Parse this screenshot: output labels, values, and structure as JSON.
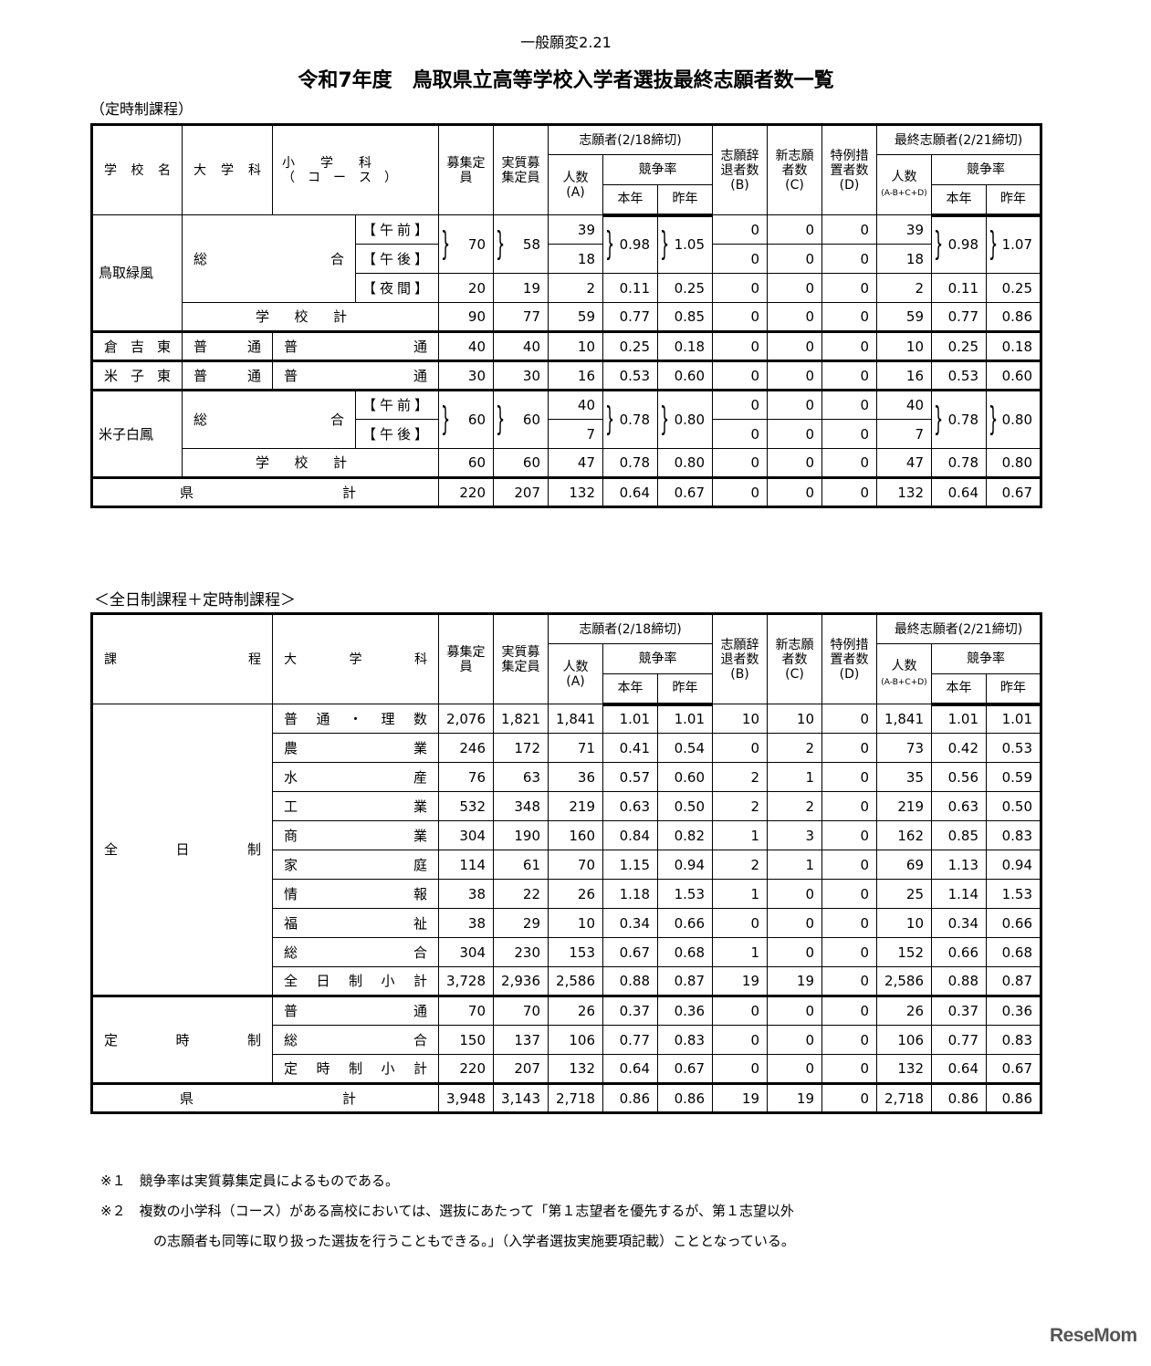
{
  "subtitle": "一般願変2.21",
  "title": "令和7年度　鳥取県立高等学校入学者選抜最終志願者数一覧",
  "section1": "（定時制課程）",
  "section2": "＜全日制課程＋定時制課程＞",
  "headers": {
    "school": "学校名",
    "course_type": "課程",
    "dept": "大学科",
    "subdept": "小　　学　　科",
    "subdept_course": "（　コ　ー　ス　）",
    "quota": "募集定員",
    "actual_quota": "実質募集定員",
    "applicants": "志願者(2/18締切)",
    "count": "人数",
    "count_a": "(A)",
    "rate": "競争率",
    "this_year": "本年",
    "last_year": "昨年",
    "withdraw": "志願辞退者数",
    "withdraw_b": "(B)",
    "new": "新志願者数",
    "new_c": "(C)",
    "special": "特例措置者数",
    "special_d": "(D)",
    "final": "最終志願者(2/21締切)",
    "final_formula": "(A-B+C+D)"
  },
  "table1": {
    "rows": [
      {
        "school": "鳥取緑風",
        "dept": "総　　　　合",
        "course": "【午前】",
        "quota": "70",
        "actual": "58",
        "a": "39",
        "rate": "0.98",
        "last": "1.05",
        "b": "0",
        "c": "0",
        "d": "0",
        "final": "39",
        "frate": "0.98",
        "flast": "1.07"
      },
      {
        "course": "【午後】",
        "a": "18",
        "b": "0",
        "c": "0",
        "d": "0",
        "final": "18"
      },
      {
        "course": "【夜間】",
        "quota": "20",
        "actual": "19",
        "a": "2",
        "rate": "0.11",
        "last": "0.25",
        "b": "0",
        "c": "0",
        "d": "0",
        "final": "2",
        "frate": "0.11",
        "flast": "0.25"
      },
      {
        "dept": "学校計",
        "quota": "90",
        "actual": "77",
        "a": "59",
        "rate": "0.77",
        "last": "0.85",
        "b": "0",
        "c": "0",
        "d": "0",
        "final": "59",
        "frate": "0.77",
        "flast": "0.86"
      },
      {
        "school": "倉吉東",
        "dept": "普通",
        "sub": "普通",
        "quota": "40",
        "actual": "40",
        "a": "10",
        "rate": "0.25",
        "last": "0.18",
        "b": "0",
        "c": "0",
        "d": "0",
        "final": "10",
        "frate": "0.25",
        "flast": "0.18"
      },
      {
        "school": "米子東",
        "dept": "普通",
        "sub": "普通",
        "quota": "30",
        "actual": "30",
        "a": "16",
        "rate": "0.53",
        "last": "0.60",
        "b": "0",
        "c": "0",
        "d": "0",
        "final": "16",
        "frate": "0.53",
        "flast": "0.60"
      },
      {
        "school": "米子白鳳",
        "dept": "総　　　　合",
        "course": "【午前】",
        "quota": "60",
        "actual": "60",
        "a": "40",
        "rate": "0.78",
        "last": "0.80",
        "b": "0",
        "c": "0",
        "d": "0",
        "final": "40",
        "frate": "0.78",
        "flast": "0.80"
      },
      {
        "course": "【午後】",
        "a": "7",
        "b": "0",
        "c": "0",
        "d": "0",
        "final": "7"
      },
      {
        "dept": "学校計",
        "quota": "60",
        "actual": "60",
        "a": "47",
        "rate": "0.78",
        "last": "0.80",
        "b": "0",
        "c": "0",
        "d": "0",
        "final": "47",
        "frate": "0.78",
        "flast": "0.80"
      },
      {
        "dept": "県計",
        "quota": "220",
        "actual": "207",
        "a": "132",
        "rate": "0.64",
        "last": "0.67",
        "b": "0",
        "c": "0",
        "d": "0",
        "final": "132",
        "frate": "0.64",
        "flast": "0.67"
      }
    ]
  },
  "table2": {
    "groups": [
      "全日制",
      "定時制"
    ],
    "rows": [
      {
        "dept": "普通・理数",
        "quota": "2,076",
        "actual": "1,821",
        "a": "1,841",
        "rate": "1.01",
        "last": "1.01",
        "b": "10",
        "c": "10",
        "d": "0",
        "final": "1,841",
        "frate": "1.01",
        "flast": "1.01"
      },
      {
        "dept": "農業",
        "quota": "246",
        "actual": "172",
        "a": "71",
        "rate": "0.41",
        "last": "0.54",
        "b": "0",
        "c": "2",
        "d": "0",
        "final": "73",
        "frate": "0.42",
        "flast": "0.53"
      },
      {
        "dept": "水産",
        "quota": "76",
        "actual": "63",
        "a": "36",
        "rate": "0.57",
        "last": "0.60",
        "b": "2",
        "c": "1",
        "d": "0",
        "final": "35",
        "frate": "0.56",
        "flast": "0.59"
      },
      {
        "dept": "工業",
        "quota": "532",
        "actual": "348",
        "a": "219",
        "rate": "0.63",
        "last": "0.50",
        "b": "2",
        "c": "2",
        "d": "0",
        "final": "219",
        "frate": "0.63",
        "flast": "0.50"
      },
      {
        "dept": "商業",
        "quota": "304",
        "actual": "190",
        "a": "160",
        "rate": "0.84",
        "last": "0.82",
        "b": "1",
        "c": "3",
        "d": "0",
        "final": "162",
        "frate": "0.85",
        "flast": "0.83"
      },
      {
        "dept": "家庭",
        "quota": "114",
        "actual": "61",
        "a": "70",
        "rate": "1.15",
        "last": "0.94",
        "b": "2",
        "c": "1",
        "d": "0",
        "final": "69",
        "frate": "1.13",
        "flast": "0.94"
      },
      {
        "dept": "情報",
        "quota": "38",
        "actual": "22",
        "a": "26",
        "rate": "1.18",
        "last": "1.53",
        "b": "1",
        "c": "0",
        "d": "0",
        "final": "25",
        "frate": "1.14",
        "flast": "1.53"
      },
      {
        "dept": "福祉",
        "quota": "38",
        "actual": "29",
        "a": "10",
        "rate": "0.34",
        "last": "0.66",
        "b": "0",
        "c": "0",
        "d": "0",
        "final": "10",
        "frate": "0.34",
        "flast": "0.66"
      },
      {
        "dept": "総合",
        "quota": "304",
        "actual": "230",
        "a": "153",
        "rate": "0.67",
        "last": "0.68",
        "b": "1",
        "c": "0",
        "d": "0",
        "final": "152",
        "frate": "0.66",
        "flast": "0.68"
      },
      {
        "dept": "全日制小計",
        "quota": "3,728",
        "actual": "2,936",
        "a": "2,586",
        "rate": "0.88",
        "last": "0.87",
        "b": "19",
        "c": "19",
        "d": "0",
        "final": "2,586",
        "frate": "0.88",
        "flast": "0.87"
      },
      {
        "dept": "普通",
        "quota": "70",
        "actual": "70",
        "a": "26",
        "rate": "0.37",
        "last": "0.36",
        "b": "0",
        "c": "0",
        "d": "0",
        "final": "26",
        "frate": "0.37",
        "flast": "0.36"
      },
      {
        "dept": "総合",
        "quota": "150",
        "actual": "137",
        "a": "106",
        "rate": "0.77",
        "last": "0.83",
        "b": "0",
        "c": "0",
        "d": "0",
        "final": "106",
        "frate": "0.77",
        "flast": "0.83"
      },
      {
        "dept": "定時制小計",
        "quota": "220",
        "actual": "207",
        "a": "132",
        "rate": "0.64",
        "last": "0.67",
        "b": "0",
        "c": "0",
        "d": "0",
        "final": "132",
        "frate": "0.64",
        "flast": "0.67"
      },
      {
        "dept": "県計",
        "quota": "3,948",
        "actual": "3,143",
        "a": "2,718",
        "rate": "0.86",
        "last": "0.86",
        "b": "19",
        "c": "19",
        "d": "0",
        "final": "2,718",
        "frate": "0.86",
        "flast": "0.86"
      }
    ]
  },
  "footnotes": [
    "※１　競争率は実質募集定員によるものである。",
    "※２　複数の小学科（コース）がある高校においては、選抜にあたって「第１志望者を優先するが、第１志望以外",
    "の志願者も同等に取り扱った選抜を行うこともできる。」（入学者選抜実施要項記載）こととなっている。"
  ],
  "logo": "ReseMom"
}
